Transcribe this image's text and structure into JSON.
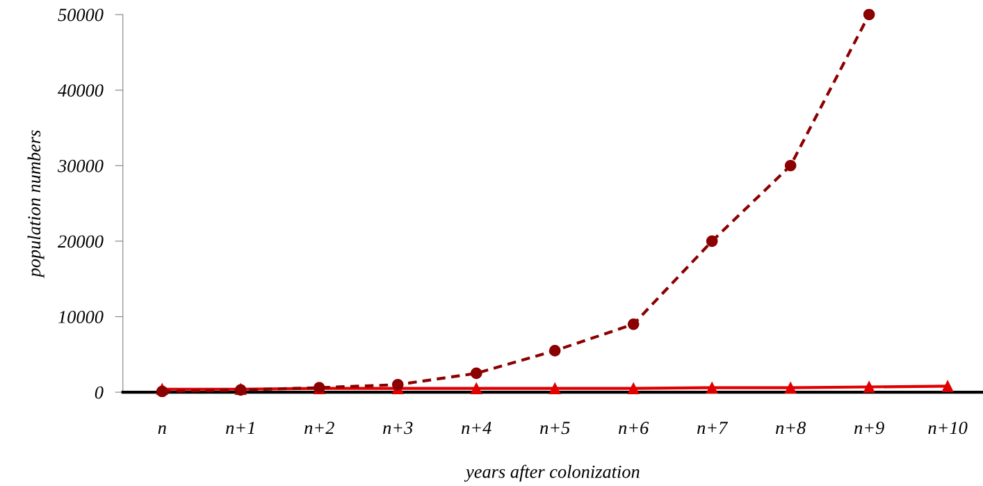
{
  "chart_data": {
    "type": "line",
    "xlabel": "years after colonization",
    "ylabel": "population numbers",
    "categories": [
      "n",
      "n+1",
      "n+2",
      "n+3",
      "n+4",
      "n+5",
      "n+6",
      "n+7",
      "n+8",
      "n+9",
      "n+10"
    ],
    "series": [
      {
        "color": "#8b0000",
        "marker": "circle",
        "line_style": "dashed",
        "values": [
          100,
          300,
          600,
          1000,
          2500,
          5500,
          9000,
          20000,
          30000,
          50000,
          null
        ]
      },
      {
        "color": "#e00000",
        "marker": "triangle",
        "line_style": "solid",
        "values": [
          400,
          400,
          500,
          500,
          500,
          500,
          500,
          600,
          600,
          700,
          800
        ]
      }
    ],
    "ylim": [
      0,
      50000
    ],
    "yticks": [
      0,
      10000,
      20000,
      30000,
      40000,
      50000
    ],
    "grid": false,
    "legend": false
  }
}
